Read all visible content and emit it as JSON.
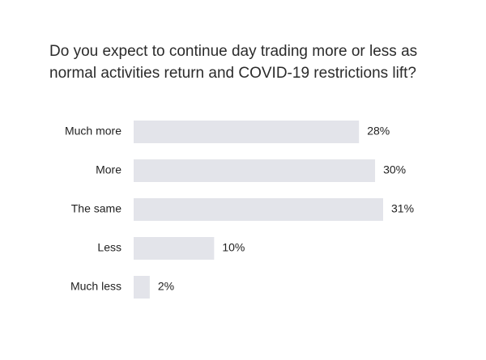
{
  "chart_data": {
    "type": "bar",
    "orientation": "horizontal",
    "title": "Do you expect to continue day trading more or less as normal activities return and COVID-19 restrictions lift?",
    "categories": [
      "Much more",
      "More",
      "The same",
      "Less",
      "Much less"
    ],
    "values": [
      28,
      30,
      31,
      10,
      2
    ],
    "value_labels": [
      "28%",
      "30%",
      "31%",
      "10%",
      "2%"
    ],
    "xlim": [
      0,
      31
    ],
    "grid": false,
    "legend": "none",
    "bar_color": "#e3e4ea"
  }
}
